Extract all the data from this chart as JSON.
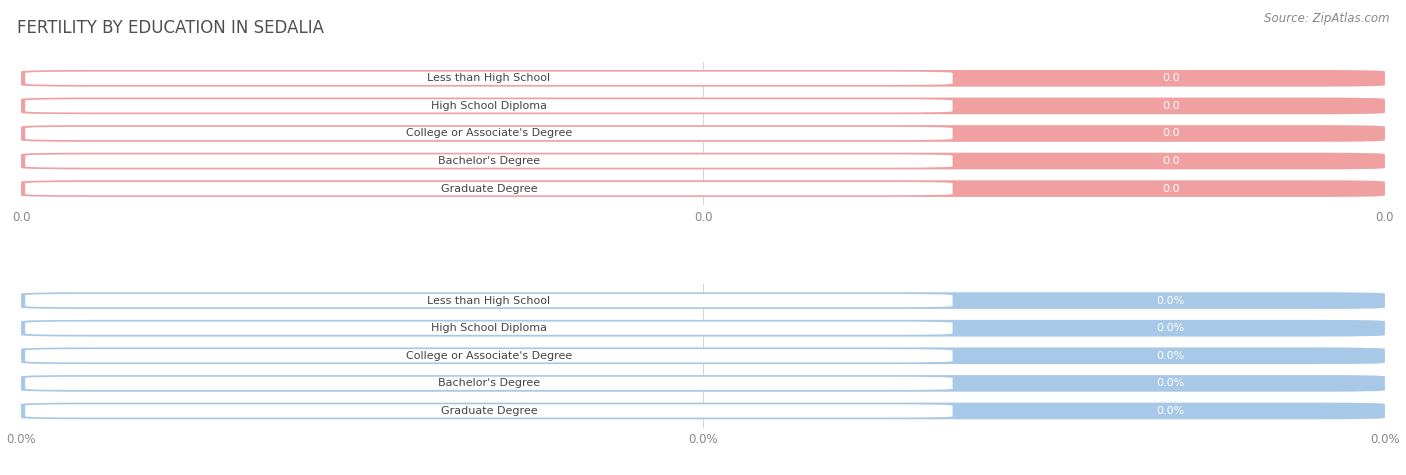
{
  "title": "FERTILITY BY EDUCATION IN SEDALIA",
  "source": "Source: ZipAtlas.com",
  "categories": [
    "Less than High School",
    "High School Diploma",
    "College or Associate's Degree",
    "Bachelor's Degree",
    "Graduate Degree"
  ],
  "top_values": [
    0.0,
    0.0,
    0.0,
    0.0,
    0.0
  ],
  "bottom_values": [
    0.0,
    0.0,
    0.0,
    0.0,
    0.0
  ],
  "top_bar_color": "#F0A0A0",
  "top_bar_bg": "#EBEBEB",
  "bottom_bar_color": "#A8C8E8",
  "bottom_bar_bg": "#EBEBEB",
  "top_value_suffix": "",
  "bottom_value_suffix": "%",
  "title_color": "#505050",
  "tick_label_color": "#888888",
  "source_color": "#888888",
  "bg_color": "#FFFFFF",
  "figsize": [
    14.06,
    4.75
  ],
  "dpi": 100
}
